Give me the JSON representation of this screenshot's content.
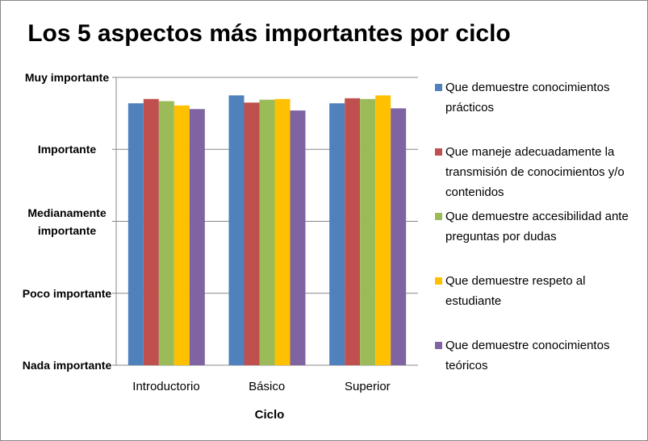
{
  "chart_data": {
    "type": "bar",
    "title": "Los 5 aspectos más importantes por ciclo",
    "x_label": "Ciclo",
    "categories": [
      "Introductorio",
      "Básico",
      "Superior"
    ],
    "series": [
      {
        "name": "Que demuestre conocimientos prácticos",
        "color": "#4F81BD",
        "values": [
          4.64,
          4.75,
          4.64
        ]
      },
      {
        "name": "Que maneje adecuadamente la transmisión de conocimientos y/o contenidos",
        "color": "#C0504D",
        "values": [
          4.7,
          4.65,
          4.71
        ]
      },
      {
        "name": "Que demuestre accesibilidad ante preguntas por dudas",
        "color": "#9BBB59",
        "values": [
          4.67,
          4.69,
          4.7
        ]
      },
      {
        "name": "Que demuestre respeto al estudiante",
        "color": "#FFC000",
        "values": [
          4.61,
          4.7,
          4.75
        ]
      },
      {
        "name": "Que demuestre conocimientos teóricos",
        "color": "#8064A2",
        "values": [
          4.56,
          4.54,
          4.57
        ]
      }
    ],
    "ylim": [
      1,
      5
    ],
    "yticks": [
      {
        "value": 1,
        "label": "Nada importante"
      },
      {
        "value": 2,
        "label": "Poco importante"
      },
      {
        "value": 3,
        "label": "Medianamente importante"
      },
      {
        "value": 4,
        "label": "Importante"
      },
      {
        "value": 5,
        "label": "Muy importante"
      }
    ],
    "grid": true,
    "legend": "right"
  }
}
